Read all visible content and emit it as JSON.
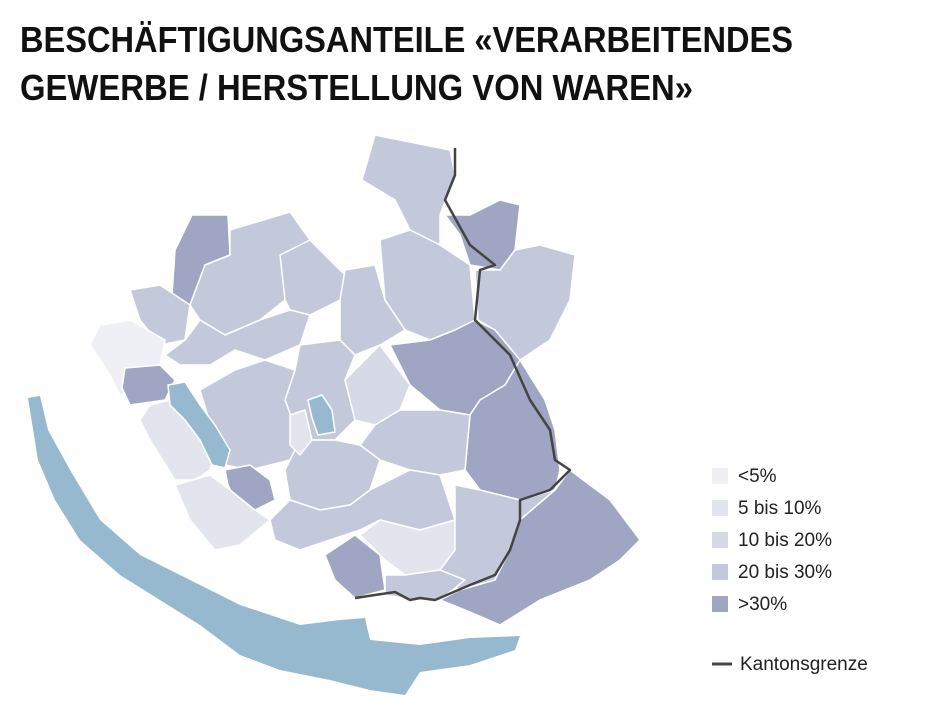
{
  "header": {
    "title_lines": [
      "BESCHÄFTIGUNGSANTEILE «VERARBEITENDES",
      "GEWERBE / HERSTELLUNG VON WAREN»"
    ]
  },
  "legend": {
    "items": [
      {
        "label": "<5%",
        "color": "#eff0f5"
      },
      {
        "label": "5 bis 10%",
        "color": "#e3e5ee"
      },
      {
        "label": "10 bis 20%",
        "color": "#d6d9e6"
      },
      {
        "label": "20 bis 30%",
        "color": "#c4c8db"
      },
      {
        "label": ">30%",
        "color": "#9fa5c2"
      }
    ],
    "border": {
      "label": "Kantonsgrenze",
      "color": "#444444"
    }
  },
  "lake_color": "#97b9cf"
}
